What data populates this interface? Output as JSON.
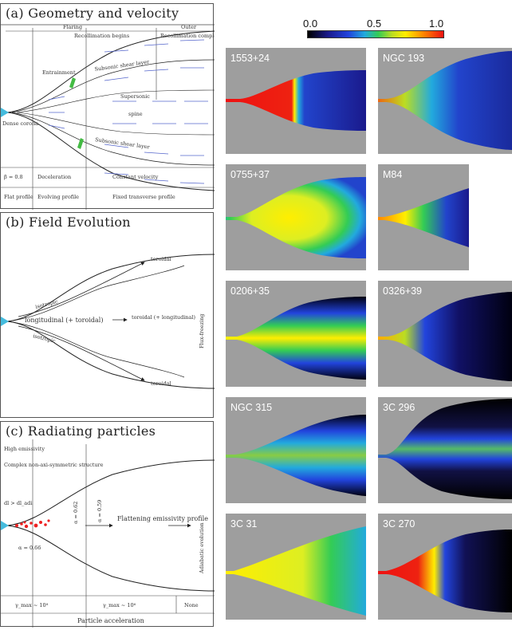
{
  "panel_a": {
    "title": "(a) Geometry and velocity",
    "top_flaring": "Flaring",
    "top_outer": "Outer",
    "recollimation_begins": "Recollimation begins",
    "recollimation_complete": "Recollimation complete",
    "entrainment": "Entrainment",
    "subsonic_shear_top": "Subsonic shear layer",
    "supersonic": "Supersonic",
    "spine": "spine",
    "subsonic_shear_bottom": "Subsonic shear layer",
    "dense_corona": "Dense corona",
    "beta": "β = 0.8",
    "deceleration": "Deceleration",
    "constant_velocity": "Constant velocity",
    "flat_profile": "Flat profile",
    "evolving_profile": "Evolving profile",
    "fixed_profile": "Fixed transverse profile"
  },
  "panel_b": {
    "title": "(b) Field Evolution",
    "toroidal_top": "toroidal",
    "isotropic_top": "isotropic",
    "longitudinal": "longitudinal (+ toroidal)",
    "toroidal_mid": "toroidal (+ longitudinal)",
    "isotropic_bottom": "isotropic",
    "toroidal_bottom": "toroidal",
    "flux_freezing": "Flux-freezing"
  },
  "panel_c": {
    "title": "(c) Radiating particles",
    "high_emissivity": "High emissivity",
    "complex": "Complex non-axi-symmetric structure",
    "dl": "dl > dl_adi",
    "alpha_066": "α = 0.66",
    "alpha_062": "α = 0.62",
    "alpha_059": "α = 0.59",
    "flattening": "Flattening emissivity profile",
    "adiabatic": "Adiabatic evolution",
    "gamma1": "γ_max ~ 10⁸",
    "gamma2": "γ_max ~ 10⁶",
    "none": "None",
    "particle_acceleration": "Particle acceleration"
  },
  "colorbar": {
    "min": "0.0",
    "mid": "0.5",
    "max": "1.0"
  },
  "tiles": [
    {
      "label": "1553+24"
    },
    {
      "label": "NGC 193"
    },
    {
      "label": "0755+37"
    },
    {
      "label": "M84"
    },
    {
      "label": "0206+35"
    },
    {
      "label": "0326+39"
    },
    {
      "label": "NGC 315"
    },
    {
      "label": "3C 296"
    },
    {
      "label": "3C 31"
    },
    {
      "label": "3C 270"
    }
  ]
}
